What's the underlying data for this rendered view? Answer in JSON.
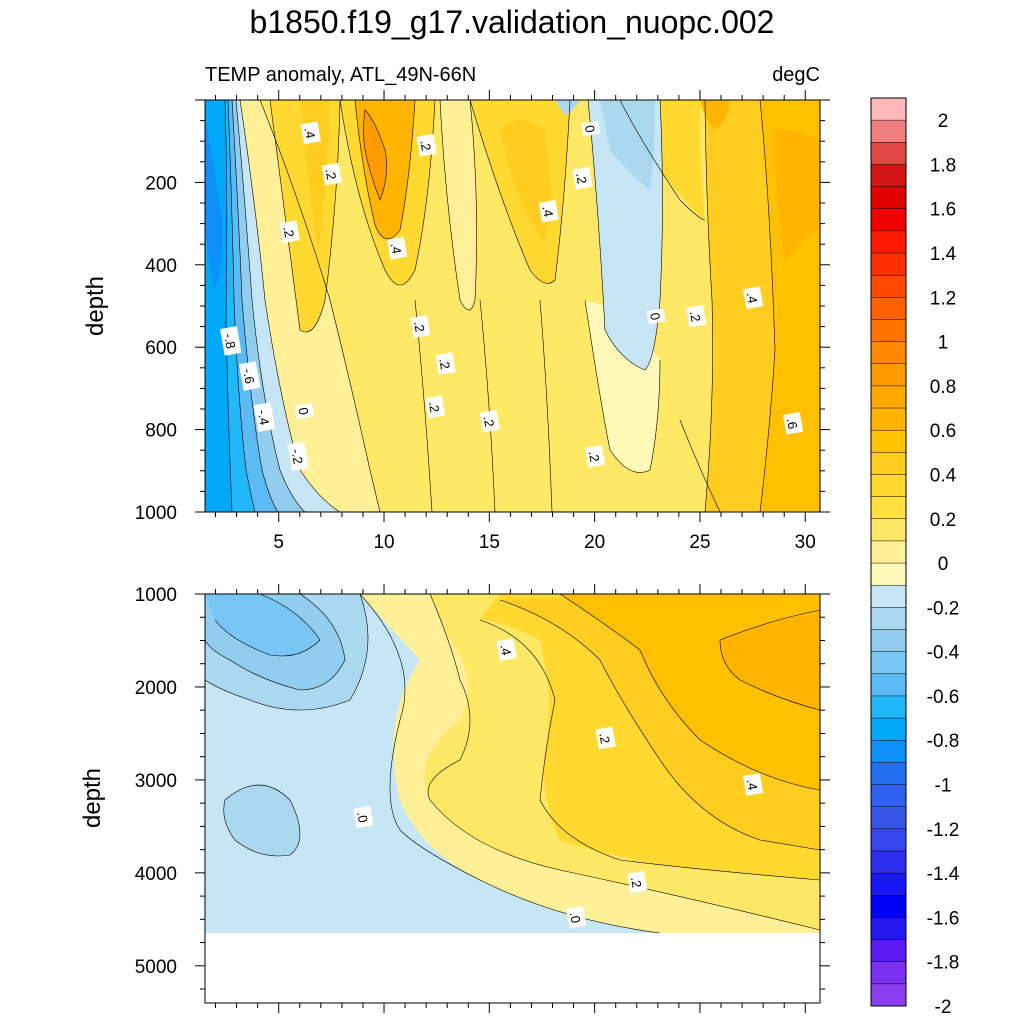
{
  "title": "b1850.f19_g17.validation_nuopc.002",
  "subtitle_left": "TEMP anomaly, ATL_49N-66N",
  "subtitle_right": "degC",
  "chart_data": [
    {
      "type": "contour",
      "panel": "upper",
      "ylabel": "depth",
      "xlim": [
        1.5,
        30.7
      ],
      "ylim": [
        1000,
        0
      ],
      "x_ticks": [
        "5",
        "10",
        "15",
        "20",
        "25",
        "30"
      ],
      "y_ticks": [
        "200",
        "400",
        "600",
        "800",
        "1000"
      ],
      "contour_labels": [
        {
          "text": ".4",
          "x": 6.5,
          "y": 80
        },
        {
          "text": ".2",
          "x": 7.5,
          "y": 180
        },
        {
          "text": ".2",
          "x": 12.0,
          "y": 110
        },
        {
          "text": ".2",
          "x": 5.5,
          "y": 320
        },
        {
          "text": ".4",
          "x": 10.6,
          "y": 360
        },
        {
          "text": ".4",
          "x": 17.8,
          "y": 270
        },
        {
          "text": "0",
          "x": 19.8,
          "y": 70
        },
        {
          "text": ".2",
          "x": 19.4,
          "y": 190
        },
        {
          "text": ".2",
          "x": 11.7,
          "y": 550
        },
        {
          "text": "0",
          "x": 22.9,
          "y": 525
        },
        {
          "text": ".2",
          "x": 24.8,
          "y": 525
        },
        {
          "text": ".4",
          "x": 27.5,
          "y": 480
        },
        {
          "text": "-.8",
          "x": 2.7,
          "y": 585
        },
        {
          "text": "-.6",
          "x": 3.6,
          "y": 670
        },
        {
          "text": "0",
          "x": 6.2,
          "y": 755
        },
        {
          "text": "-.4",
          "x": 4.3,
          "y": 770
        },
        {
          "text": "-.2",
          "x": 5.9,
          "y": 865
        },
        {
          "text": ".2",
          "x": 12.9,
          "y": 640
        },
        {
          "text": ".2",
          "x": 12.4,
          "y": 745
        },
        {
          "text": ".2",
          "x": 15.0,
          "y": 780
        },
        {
          "text": ".2",
          "x": 20.0,
          "y": 865
        },
        {
          "text": ".6",
          "x": 29.4,
          "y": 785
        }
      ]
    },
    {
      "type": "contour",
      "panel": "lower",
      "ylabel": "depth",
      "xlim": [
        1.5,
        30.7
      ],
      "ylim": [
        5400,
        1000
      ],
      "x_ticks": [],
      "y_ticks": [
        "1000",
        "2000",
        "3000",
        "4000",
        "5000"
      ],
      "contour_labels": [
        {
          "text": ".4",
          "x": 15.8,
          "y": 1600
        },
        {
          "text": ".2",
          "x": 20.5,
          "y": 2550
        },
        {
          "text": ".4",
          "x": 27.5,
          "y": 3050
        },
        {
          "text": ".0",
          "x": 9.0,
          "y": 3400
        },
        {
          "text": ".2",
          "x": 22.0,
          "y": 4100
        },
        {
          "text": ".0",
          "x": 19.1,
          "y": 4480
        }
      ]
    }
  ],
  "colorbar": {
    "labels": [
      "2",
      "1.8",
      "1.6",
      "1.4",
      "1.2",
      "1",
      "0.8",
      "0.6",
      "0.4",
      "0.2",
      "0",
      "-0.2",
      "-0.4",
      "-0.6",
      "-0.8",
      "-1",
      "-1.2",
      "-1.4",
      "-1.6",
      "-1.8",
      "-2"
    ],
    "colors": [
      "#ffb8b8",
      "#f08080",
      "#e04848",
      "#d21414",
      "#e00000",
      "#f00000",
      "#ff1a00",
      "#ff3000",
      "#ff4800",
      "#ff6000",
      "#ff7400",
      "#ff8800",
      "#ff9a00",
      "#ffa800",
      "#ffb400",
      "#ffc000",
      "#ffcc20",
      "#ffd830",
      "#ffe040",
      "#ffe866",
      "#fff098",
      "#fffab8",
      "#c6e6f5",
      "#aad8ef",
      "#90cdef",
      "#78c6f3",
      "#5cbaf5",
      "#20b8f8",
      "#00a8fa",
      "#0e90f8",
      "#2470f0",
      "#3060ee",
      "#3a56e8",
      "#3848ee",
      "#2c30ee",
      "#1818f4",
      "#0000f8",
      "#2418f0",
      "#5a18f2",
      "#7a30f0",
      "#8a3ef0"
    ]
  }
}
